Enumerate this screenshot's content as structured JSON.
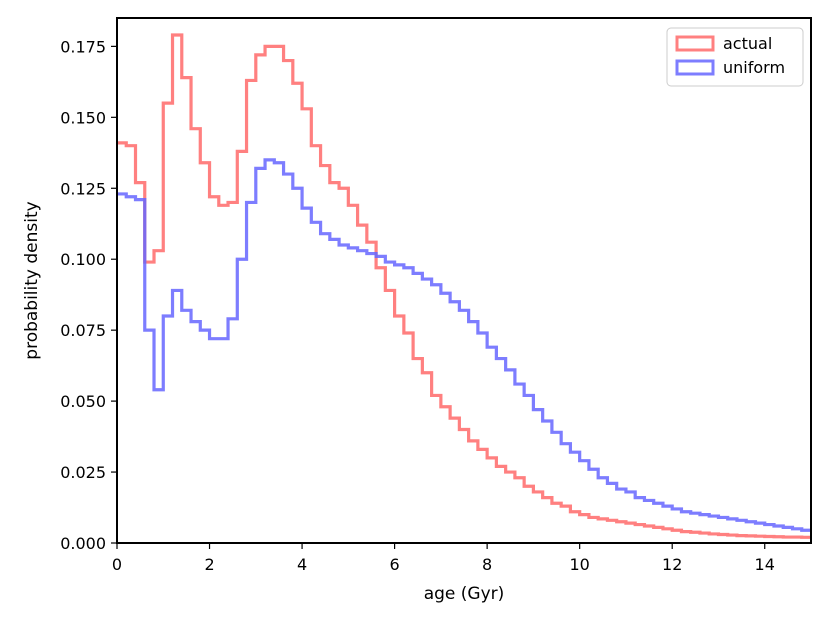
{
  "chart_data": {
    "type": "line",
    "title": "",
    "xlabel": "age (Gyr)",
    "ylabel": "probability density",
    "xlim": [
      0,
      15
    ],
    "ylim": [
      0,
      0.185
    ],
    "x_ticks": [
      0,
      2,
      4,
      6,
      8,
      10,
      12,
      14
    ],
    "x_tick_labels": [
      "0",
      "2",
      "4",
      "6",
      "8",
      "10",
      "12",
      "14"
    ],
    "y_ticks": [
      0,
      0.025,
      0.05,
      0.075,
      0.1,
      0.125,
      0.15,
      0.175
    ],
    "y_tick_labels": [
      "0.000",
      "0.025",
      "0.050",
      "0.075",
      "0.100",
      "0.125",
      "0.150",
      "0.175"
    ],
    "grid": false,
    "legend_position": "top-right",
    "bin_width": 0.2,
    "bin_edges_start": 0,
    "series": [
      {
        "name": "actual",
        "color": "#ff6a6a",
        "values": [
          0.141,
          0.14,
          0.127,
          0.099,
          0.103,
          0.155,
          0.179,
          0.164,
          0.146,
          0.134,
          0.122,
          0.119,
          0.12,
          0.138,
          0.163,
          0.172,
          0.175,
          0.175,
          0.17,
          0.162,
          0.153,
          0.14,
          0.133,
          0.127,
          0.125,
          0.119,
          0.112,
          0.106,
          0.097,
          0.089,
          0.08,
          0.074,
          0.065,
          0.06,
          0.052,
          0.048,
          0.044,
          0.04,
          0.036,
          0.033,
          0.03,
          0.027,
          0.025,
          0.023,
          0.02,
          0.018,
          0.016,
          0.014,
          0.013,
          0.011,
          0.01,
          0.009,
          0.0085,
          0.008,
          0.0075,
          0.007,
          0.0065,
          0.006,
          0.0055,
          0.005,
          0.0045,
          0.004,
          0.0038,
          0.0035,
          0.0032,
          0.003,
          0.0028,
          0.0026,
          0.0025,
          0.0024,
          0.0023,
          0.0022,
          0.0021,
          0.0021,
          0.002
        ]
      },
      {
        "name": "uniform",
        "color": "#6666ff",
        "values": [
          0.123,
          0.122,
          0.121,
          0.075,
          0.054,
          0.08,
          0.089,
          0.082,
          0.078,
          0.075,
          0.072,
          0.072,
          0.079,
          0.1,
          0.12,
          0.132,
          0.135,
          0.134,
          0.13,
          0.125,
          0.118,
          0.113,
          0.109,
          0.107,
          0.105,
          0.104,
          0.103,
          0.102,
          0.101,
          0.099,
          0.098,
          0.097,
          0.095,
          0.093,
          0.091,
          0.088,
          0.085,
          0.082,
          0.078,
          0.074,
          0.069,
          0.065,
          0.061,
          0.056,
          0.052,
          0.047,
          0.043,
          0.039,
          0.035,
          0.032,
          0.029,
          0.026,
          0.023,
          0.021,
          0.019,
          0.018,
          0.016,
          0.015,
          0.014,
          0.013,
          0.012,
          0.011,
          0.0105,
          0.01,
          0.0095,
          0.009,
          0.0085,
          0.008,
          0.0075,
          0.007,
          0.0065,
          0.006,
          0.0055,
          0.005,
          0.0045
        ]
      }
    ]
  }
}
